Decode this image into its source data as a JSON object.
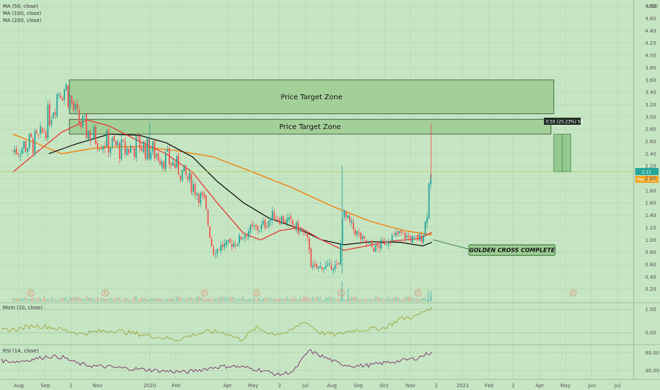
{
  "legend": {
    "ma50": "MA (50, close)",
    "ma100": "MA (100, close)",
    "ma200": "MA (200, close)",
    "mom": "Mom (10, close)",
    "rsi": "RSI (14, close)"
  },
  "currency": "USD",
  "zones": [
    {
      "label": "Price Target Zone",
      "from": 3.05,
      "to": 3.6
    },
    {
      "label": "Price Target Zone",
      "from": 2.72,
      "to": 2.96
    }
  ],
  "measure_label": "0.55 (25.23%) 55",
  "callout": "GOLDEN CROSS COMPLETE",
  "last_price_label": "2.11",
  "pre_label": "Pre",
  "pre_price_label": "2.11",
  "earnings_marker": "E",
  "colors": {
    "up": "#26a69a",
    "down": "#ef5350",
    "ma50": "#e53935",
    "ma100": "#111111",
    "ma200": "#f57c00",
    "momentum": "#9aa83a",
    "rsi": "#7b2d6e",
    "zone": "#9ccc92",
    "background": "#c6e5c3"
  },
  "chart_data": [
    {
      "type": "candlestick",
      "title": "",
      "ylabel": "USD",
      "ylim": [
        0,
        4.9
      ],
      "y_ticks": [
        "4.80",
        "4.60",
        "4.40",
        "4.20",
        "4.00",
        "3.80",
        "3.60",
        "3.40",
        "3.20",
        "3.00",
        "2.80",
        "2.60",
        "2.40",
        "2.20",
        "2.00",
        "1.80",
        "1.60",
        "1.40",
        "1.20",
        "1.00",
        "0.80",
        "0.60",
        "0.40",
        "0.20"
      ],
      "x_ticks": [
        "Aug",
        "Sep",
        "2",
        "Nov",
        "2020",
        "Feb",
        "Apr",
        "May",
        "2",
        "Jul",
        "Aug",
        "Sep",
        "Oct",
        "Nov",
        "2",
        "2021",
        "Feb",
        "2",
        "Apr",
        "May",
        "Jun",
        "Jul"
      ],
      "close_path": [
        {
          "date": "2019-07-25",
          "close": 2.45
        },
        {
          "date": "2019-08-10",
          "close": 2.55
        },
        {
          "date": "2019-08-25",
          "close": 2.6
        },
        {
          "date": "2019-09-05",
          "close": 3.0
        },
        {
          "date": "2019-09-18",
          "close": 3.5
        },
        {
          "date": "2019-09-26",
          "close": 3.45
        },
        {
          "date": "2019-10-08",
          "close": 2.95
        },
        {
          "date": "2019-10-25",
          "close": 2.7
        },
        {
          "date": "2019-11-10",
          "close": 2.6
        },
        {
          "date": "2019-12-01",
          "close": 2.45
        },
        {
          "date": "2019-12-20",
          "close": 2.55
        },
        {
          "date": "2020-01-10",
          "close": 2.4
        },
        {
          "date": "2020-02-01",
          "close": 2.2
        },
        {
          "date": "2020-02-20",
          "close": 1.9
        },
        {
          "date": "2020-03-05",
          "close": 1.6
        },
        {
          "date": "2020-03-15",
          "close": 0.8
        },
        {
          "date": "2020-03-25",
          "close": 0.9
        },
        {
          "date": "2020-04-10",
          "close": 0.95
        },
        {
          "date": "2020-04-25",
          "close": 1.15
        },
        {
          "date": "2020-05-10",
          "close": 1.2
        },
        {
          "date": "2020-05-25",
          "close": 1.4
        },
        {
          "date": "2020-06-10",
          "close": 1.3
        },
        {
          "date": "2020-06-25",
          "close": 1.15
        },
        {
          "date": "2020-07-05",
          "close": 0.95
        },
        {
          "date": "2020-07-08",
          "close": 0.55
        },
        {
          "date": "2020-08-10",
          "close": 0.58
        },
        {
          "date": "2020-08-13",
          "close": 1.45
        },
        {
          "date": "2020-08-20",
          "close": 1.3
        },
        {
          "date": "2020-09-05",
          "close": 1.0
        },
        {
          "date": "2020-09-20",
          "close": 0.85
        },
        {
          "date": "2020-10-05",
          "close": 1.0
        },
        {
          "date": "2020-10-20",
          "close": 1.1
        },
        {
          "date": "2020-11-05",
          "close": 1.0
        },
        {
          "date": "2020-11-15",
          "close": 1.05
        },
        {
          "date": "2020-11-20",
          "close": 1.4
        },
        {
          "date": "2020-11-24",
          "close": 2.2
        },
        {
          "date": "2020-11-26",
          "close": 2.11
        }
      ],
      "ma50_path": [
        {
          "date": "2019-07-25",
          "close": 2.1
        },
        {
          "date": "2019-08-20",
          "close": 2.4
        },
        {
          "date": "2019-09-20",
          "close": 2.75
        },
        {
          "date": "2019-10-20",
          "close": 2.95
        },
        {
          "date": "2019-11-15",
          "close": 2.85
        },
        {
          "date": "2019-12-20",
          "close": 2.6
        },
        {
          "date": "2020-01-20",
          "close": 2.4
        },
        {
          "date": "2020-02-20",
          "close": 2.1
        },
        {
          "date": "2020-03-20",
          "close": 1.6
        },
        {
          "date": "2020-04-20",
          "close": 1.1
        },
        {
          "date": "2020-05-10",
          "close": 1.0
        },
        {
          "date": "2020-06-01",
          "close": 1.15
        },
        {
          "date": "2020-06-25",
          "close": 1.2
        },
        {
          "date": "2020-07-20",
          "close": 1.0
        },
        {
          "date": "2020-08-15",
          "close": 0.83
        },
        {
          "date": "2020-09-10",
          "close": 0.9
        },
        {
          "date": "2020-10-10",
          "close": 0.98
        },
        {
          "date": "2020-11-10",
          "close": 1.02
        },
        {
          "date": "2020-11-26",
          "close": 1.12
        }
      ],
      "ma100_path": [
        {
          "date": "2019-09-05",
          "close": 2.4
        },
        {
          "date": "2019-10-05",
          "close": 2.55
        },
        {
          "date": "2019-11-15",
          "close": 2.72
        },
        {
          "date": "2019-12-20",
          "close": 2.7
        },
        {
          "date": "2020-01-20",
          "close": 2.58
        },
        {
          "date": "2020-02-20",
          "close": 2.35
        },
        {
          "date": "2020-03-20",
          "close": 1.95
        },
        {
          "date": "2020-04-20",
          "close": 1.6
        },
        {
          "date": "2020-05-20",
          "close": 1.35
        },
        {
          "date": "2020-06-20",
          "close": 1.2
        },
        {
          "date": "2020-07-20",
          "close": 1.0
        },
        {
          "date": "2020-08-15",
          "close": 0.92
        },
        {
          "date": "2020-09-15",
          "close": 0.97
        },
        {
          "date": "2020-10-20",
          "close": 0.96
        },
        {
          "date": "2020-11-15",
          "close": 0.9
        },
        {
          "date": "2020-11-26",
          "close": 0.96
        }
      ],
      "ma200_path": [
        {
          "date": "2019-07-25",
          "close": 2.72
        },
        {
          "date": "2019-08-20",
          "close": 2.58
        },
        {
          "date": "2019-09-20",
          "close": 2.4
        },
        {
          "date": "2019-11-01",
          "close": 2.5
        },
        {
          "date": "2019-12-20",
          "close": 2.52
        },
        {
          "date": "2020-02-01",
          "close": 2.45
        },
        {
          "date": "2020-03-15",
          "close": 2.35
        },
        {
          "date": "2020-05-01",
          "close": 2.1
        },
        {
          "date": "2020-06-15",
          "close": 1.85
        },
        {
          "date": "2020-08-01",
          "close": 1.55
        },
        {
          "date": "2020-09-15",
          "close": 1.3
        },
        {
          "date": "2020-10-25",
          "close": 1.15
        },
        {
          "date": "2020-11-26",
          "close": 1.08
        }
      ],
      "earnings_dates": [
        "2019-08-15",
        "2019-11-10",
        "2020-03-05",
        "2020-05-05",
        "2020-08-12",
        "2020-11-10",
        "2021-05-10"
      ]
    },
    {
      "type": "line",
      "title": "Mom (10, close)",
      "ylim": [
        -0.45,
        1.25
      ],
      "y_ticks": [
        "1.00",
        "0.00"
      ],
      "series": [
        {
          "name": "Mom (10, close)",
          "values": [
            0.1,
            0.15,
            0.3,
            0.25,
            0.1,
            -0.05,
            0.05,
            0.1,
            0.0,
            -0.1,
            -0.2,
            -0.3,
            -0.1,
            0.05,
            0.0,
            -0.3,
            0.2,
            -0.05,
            0.0,
            0.5,
            0.0,
            -0.1,
            0.1,
            0.15,
            0.2,
            0.6,
            0.7,
            1.1
          ]
        }
      ]
    },
    {
      "type": "line",
      "title": "RSI (14, close)",
      "ylim": [
        23,
        97
      ],
      "y_ticks": [
        "80.00",
        "40.00"
      ],
      "series": [
        {
          "name": "RSI (14, close)",
          "values": [
            62,
            60,
            65,
            72,
            70,
            55,
            50,
            48,
            45,
            43,
            40,
            38,
            36,
            42,
            48,
            50,
            46,
            40,
            30,
            38,
            85,
            70,
            55,
            50,
            52,
            58,
            62,
            68,
            82
          ]
        }
      ]
    }
  ]
}
